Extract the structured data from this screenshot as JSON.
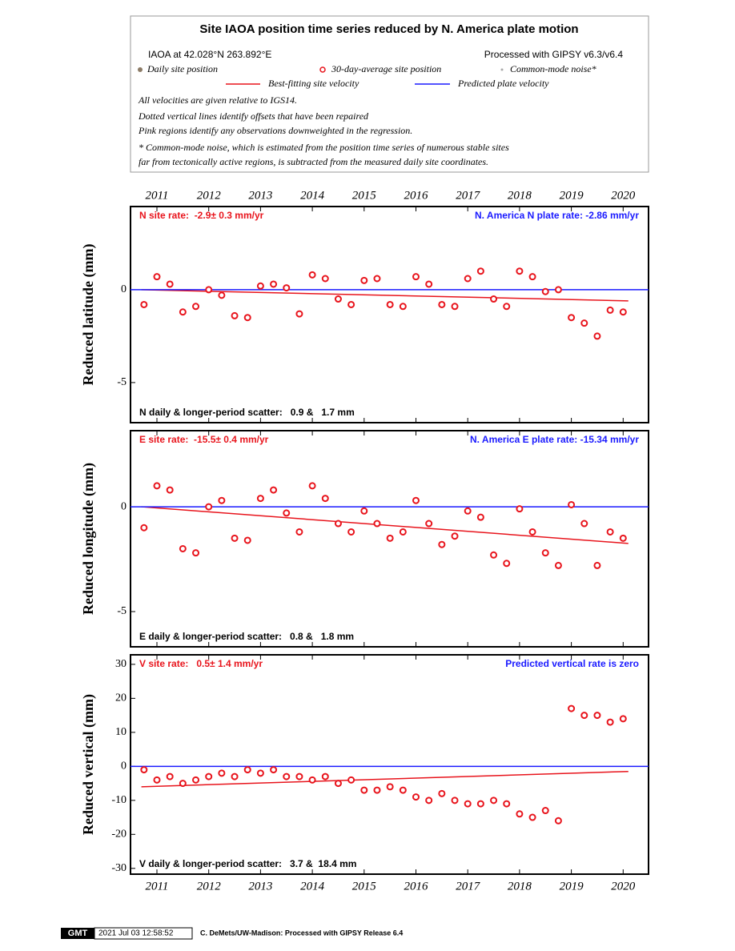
{
  "header": {
    "title": "Site IAOA position time series reduced by N. America plate motion",
    "location": "IAOA at 42.028°N 263.892°E",
    "processing": "Processed with GIPSY v6.3/v6.4",
    "legend": [
      "Daily site position",
      "30-day-average site position",
      "Common-mode noise*",
      "Best-fitting site velocity",
      "Predicted plate velocity"
    ],
    "notes": [
      "All velocities are given relative to IGS14.",
      "Dotted vertical lines identify offsets that have been repaired",
      "Pink regions identify any observations downweighted in the regression.",
      "* Common-mode noise, which is estimated from the position time series of numerous stable sites",
      "far from tectonically active regions, is subtracted from the measured daily site coordinates."
    ]
  },
  "chart_data": [
    {
      "type": "scatter",
      "y_label": "Reduced latitude (mm)",
      "rate_label": "N site rate:  -2.9± 0.3 mm/yr",
      "plate_label": "N. America N plate rate: -2.86 mm/yr",
      "scatter_label": "N daily & longer-period scatter:   0.9 &   1.7 mm",
      "xlim": [
        2010.49,
        2020.49
      ],
      "xticks": [
        2011,
        2012,
        2013,
        2014,
        2015,
        2016,
        2017,
        2018,
        2019,
        2020
      ],
      "ylim": [
        -7.16,
        4.48
      ],
      "yticks": [
        -5,
        0
      ],
      "series": [
        {
          "color": "#e8141c",
          "x": [
            2010.75,
            2011.0,
            2011.25,
            2011.5,
            2011.75,
            2012.0,
            2012.25,
            2012.5,
            2012.75,
            2013.0,
            2013.25,
            2013.5,
            2013.75,
            2014.0,
            2014.25,
            2014.5,
            2014.75,
            2015.0,
            2015.25,
            2015.5,
            2015.75,
            2016.0,
            2016.25,
            2016.5,
            2016.75,
            2017.0,
            2017.25,
            2017.5,
            2017.75,
            2018.0,
            2018.25,
            2018.5,
            2018.75,
            2019.0,
            2019.25,
            2019.5,
            2019.75,
            2020.0
          ],
          "values": [
            -0.8,
            0.7,
            0.3,
            -1.2,
            -0.9,
            0.0,
            -0.3,
            -1.4,
            -1.5,
            0.2,
            0.3,
            0.1,
            -1.3,
            0.8,
            0.6,
            -0.5,
            -0.8,
            0.5,
            0.6,
            -0.8,
            -0.9,
            0.7,
            0.3,
            -0.8,
            -0.9,
            0.6,
            1.0,
            -0.5,
            -0.9,
            1.0,
            0.7,
            -0.1,
            0.0,
            -1.5,
            -1.8,
            -2.5,
            -1.1,
            -1.2
          ]
        },
        {
          "type": "line",
          "color": "#e8141c",
          "x": [
            2010.7,
            2020.1
          ],
          "values": [
            0.0,
            -0.6
          ]
        },
        {
          "type": "line",
          "color": "#1a1aff",
          "x": [
            2010.49,
            2020.49
          ],
          "values": [
            0,
            0
          ]
        }
      ]
    },
    {
      "type": "scatter",
      "y_label": "Reduced longitude (mm)",
      "rate_label": "E site rate:  -15.5± 0.4 mm/yr",
      "plate_label": "N. America E plate rate: -15.34 mm/yr",
      "scatter_label": "E daily & longer-period scatter:   0.8 &   1.8 mm",
      "xlim": [
        2010.49,
        2020.49
      ],
      "xticks": [
        2011,
        2012,
        2013,
        2014,
        2015,
        2016,
        2017,
        2018,
        2019,
        2020
      ],
      "ylim": [
        -6.68,
        3.63
      ],
      "yticks": [
        -5,
        0
      ],
      "series": [
        {
          "color": "#e8141c",
          "x": [
            2010.75,
            2011.0,
            2011.25,
            2011.5,
            2011.75,
            2012.0,
            2012.25,
            2012.5,
            2012.75,
            2013.0,
            2013.25,
            2013.5,
            2013.75,
            2014.0,
            2014.25,
            2014.5,
            2014.75,
            2015.0,
            2015.25,
            2015.5,
            2015.75,
            2016.0,
            2016.25,
            2016.5,
            2016.75,
            2017.0,
            2017.25,
            2017.5,
            2017.75,
            2018.0,
            2018.25,
            2018.5,
            2018.75,
            2019.0,
            2019.25,
            2019.5,
            2019.75,
            2020.0
          ],
          "values": [
            -1.0,
            1.0,
            0.8,
            -2.0,
            -2.2,
            0.0,
            0.3,
            -1.5,
            -1.6,
            0.4,
            0.8,
            -0.3,
            -1.2,
            1.0,
            0.4,
            -0.8,
            -1.2,
            -0.2,
            -0.8,
            -1.5,
            -1.2,
            0.3,
            -0.8,
            -1.8,
            -1.4,
            -0.2,
            -0.5,
            -2.3,
            -2.7,
            -0.1,
            -1.2,
            -2.2,
            -2.8,
            0.1,
            -0.8,
            -2.8,
            -1.2,
            -1.5
          ]
        },
        {
          "type": "line",
          "color": "#e8141c",
          "x": [
            2010.7,
            2020.1
          ],
          "values": [
            0.0,
            -1.75
          ]
        },
        {
          "type": "line",
          "color": "#1a1aff",
          "x": [
            2010.49,
            2020.49
          ],
          "values": [
            0,
            0
          ]
        }
      ]
    },
    {
      "type": "scatter",
      "y_label": "Reduced vertical (mm)",
      "rate_label": "V site rate:   0.5± 1.4 mm/yr",
      "plate_label": "Predicted vertical rate is zero",
      "scatter_label": "V daily & longer-period scatter:   3.7 &  18.4 mm",
      "xlim": [
        2010.49,
        2020.49
      ],
      "xticks": [
        2011,
        2012,
        2013,
        2014,
        2015,
        2016,
        2017,
        2018,
        2019,
        2020
      ],
      "ylim": [
        -31.7,
        32.8
      ],
      "yticks": [
        -30,
        -20,
        -10,
        0,
        10,
        20,
        30
      ],
      "series": [
        {
          "color": "#e8141c",
          "x": [
            2010.75,
            2011.0,
            2011.25,
            2011.5,
            2011.75,
            2012.0,
            2012.25,
            2012.5,
            2012.75,
            2013.0,
            2013.25,
            2013.5,
            2013.75,
            2014.0,
            2014.25,
            2014.5,
            2014.75,
            2015.0,
            2015.25,
            2015.5,
            2015.75,
            2016.0,
            2016.25,
            2016.5,
            2016.75,
            2017.0,
            2017.25,
            2017.5,
            2017.75,
            2018.0,
            2018.25,
            2018.5,
            2018.75,
            2019.0,
            2019.25,
            2019.5,
            2019.75,
            2020.0
          ],
          "values": [
            -1,
            -4,
            -3,
            -5,
            -4,
            -3,
            -2,
            -3,
            -1,
            -2,
            -1,
            -3,
            -3,
            -4,
            -3,
            -5,
            -4,
            -7,
            -7,
            -6,
            -7,
            -9,
            -10,
            -8,
            -10,
            -11,
            -11,
            -10,
            -11,
            -14,
            -15,
            -13,
            -16,
            17,
            15,
            15,
            13,
            14
          ]
        },
        {
          "type": "line",
          "color": "#e8141c",
          "x": [
            2010.7,
            2020.1
          ],
          "values": [
            -6,
            -1.5
          ]
        },
        {
          "type": "line",
          "color": "#1a1aff",
          "x": [
            2010.49,
            2020.49
          ],
          "values": [
            0,
            0
          ]
        }
      ]
    }
  ],
  "footer": {
    "badge": "GMT",
    "timestamp": "2021 Jul 03 12:58:52",
    "credit": "C. DeMets/UW-Madison: Processed with GIPSY Release 6.4"
  }
}
